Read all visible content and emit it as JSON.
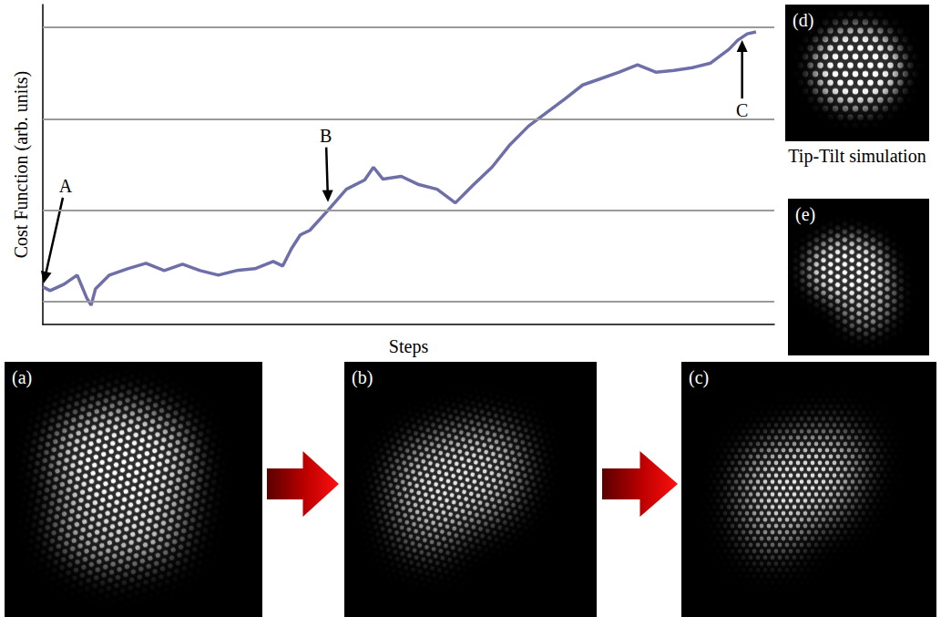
{
  "chart_data": {
    "type": "line",
    "x_label": "Steps",
    "y_label": "Cost Function (arb. units)",
    "x": [
      0,
      1,
      2.9,
      4.7,
      6,
      6.6,
      7.2,
      9.1,
      11.6,
      14.1,
      16.6,
      19.1,
      21.5,
      24,
      26.5,
      29,
      31.5,
      32.8,
      34,
      35.2,
      36.5,
      39,
      41.5,
      44,
      45.2,
      46.5,
      49,
      51.4,
      53.9,
      56.4,
      58.9,
      61.4,
      63.9,
      66.4,
      68.9,
      71.4,
      73.8,
      76.3,
      78.8,
      81.3,
      83.8,
      86.3,
      88.8,
      91.3,
      93.8,
      95,
      96.3,
      97.5
    ],
    "values": [
      0.16,
      0.12,
      0.19,
      0.29,
      0.04,
      -0.04,
      0.14,
      0.29,
      0.36,
      0.42,
      0.34,
      0.41,
      0.34,
      0.29,
      0.34,
      0.36,
      0.44,
      0.39,
      0.58,
      0.73,
      0.78,
      1.0,
      1.23,
      1.33,
      1.47,
      1.34,
      1.37,
      1.28,
      1.23,
      1.08,
      1.28,
      1.47,
      1.72,
      1.92,
      2.07,
      2.22,
      2.37,
      2.44,
      2.51,
      2.59,
      2.51,
      2.53,
      2.56,
      2.61,
      2.76,
      2.86,
      2.93,
      2.95
    ],
    "color": "#6e6fa8",
    "xlim": [
      0,
      100
    ],
    "ylim": [
      -0.25,
      3.25
    ],
    "yticks": [
      0,
      1,
      2,
      3
    ],
    "grid": true,
    "tick_labels": false,
    "annotations": [
      {
        "text": "A",
        "x": 0,
        "y": 0.16
      },
      {
        "text": "B",
        "x": 39,
        "y": 1.05
      },
      {
        "text": "C",
        "x": 95.6,
        "y": 2.9
      }
    ]
  },
  "images": [
    {
      "label": "(a)"
    },
    {
      "label": "(b)"
    },
    {
      "label": "(c)"
    },
    {
      "label": "(d)"
    },
    {
      "label": "(e)"
    }
  ],
  "image_caption": "Tip-Tilt simulation"
}
